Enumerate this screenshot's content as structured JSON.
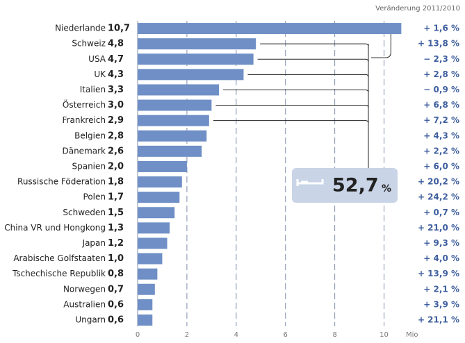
{
  "chart_data": {
    "type": "bar",
    "orientation": "horizontal",
    "header": "Veränderung 2011/2010",
    "categories": [
      "Niederlande",
      "Schweiz",
      "USA",
      "UK",
      "Italien",
      "Österreich",
      "Frankreich",
      "Belgien",
      "Dänemark",
      "Spanien",
      "Russische Föderation",
      "Polen",
      "Schweden",
      "China VR und Hongkong",
      "Japan",
      "Arabische Golfstaaten",
      "Tschechische Republik",
      "Norwegen",
      "Australien",
      "Ungarn"
    ],
    "values": [
      10.7,
      4.8,
      4.7,
      4.3,
      3.3,
      3.0,
      2.9,
      2.8,
      2.6,
      2.0,
      1.8,
      1.7,
      1.5,
      1.3,
      1.2,
      1.0,
      0.8,
      0.7,
      0.6,
      0.6
    ],
    "value_labels": [
      "10,7",
      "4,8",
      "4,7",
      "4,3",
      "3,3",
      "3,0",
      "2,9",
      "2,8",
      "2,6",
      "2,0",
      "1,8",
      "1,7",
      "1,5",
      "1,3",
      "1,2",
      "1,0",
      "0,8",
      "0,7",
      "0,6",
      "0,6"
    ],
    "change_values": [
      1.6,
      13.8,
      -2.3,
      2.8,
      -0.9,
      6.8,
      7.2,
      4.3,
      2.2,
      6.0,
      20.2,
      24.2,
      0.7,
      21.0,
      9.3,
      4.0,
      13.9,
      2.1,
      3.9,
      21.1
    ],
    "change_labels": [
      "+ 1,6 %",
      "+ 13,8 %",
      "− 2,3 %",
      "+ 2,8 %",
      "− 0,9 %",
      "+ 6,8 %",
      "+ 7,2 %",
      "+ 4,3 %",
      "+ 2,2 %",
      "+ 6,0 %",
      "+ 20,2 %",
      "+ 24,2 %",
      "+ 0,7 %",
      "+ 21,0 %",
      "+ 9,3 %",
      "+ 4,0 %",
      "+ 13,9 %",
      "+ 2,1 %",
      "+ 3,9 %",
      "+ 21,1 %"
    ],
    "color": "#6f8fc6",
    "xlim": [
      0,
      11
    ],
    "xticks": [
      0,
      2,
      4,
      6,
      8,
      10
    ],
    "x_unit": "Mio",
    "grid": true,
    "annotation": {
      "value": 52.7,
      "label": "52,7",
      "unit": "%"
    }
  }
}
